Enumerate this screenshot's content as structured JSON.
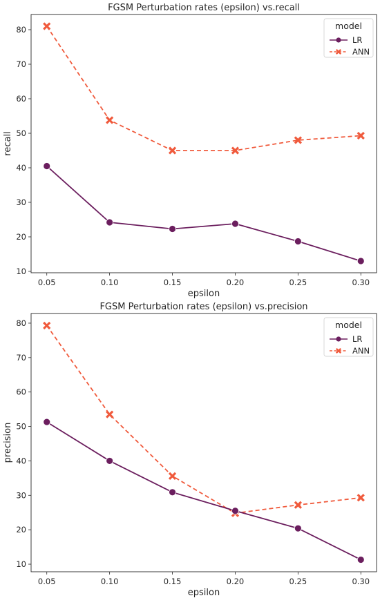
{
  "chart_data": [
    {
      "type": "line",
      "title": "FGSM Perturbation rates (epsilon) vs.recall",
      "xlabel": "epsilon",
      "ylabel": "recall",
      "x": [
        0.05,
        0.1,
        0.15,
        0.2,
        0.25,
        0.3
      ],
      "x_ticks": [
        "0.05",
        "0.10",
        "0.15",
        "0.20",
        "0.25",
        "0.30"
      ],
      "y_ticks": [
        10,
        20,
        30,
        40,
        50,
        60,
        70,
        80
      ],
      "xlim": [
        0.0375,
        0.3125
      ],
      "ylim": [
        9.6,
        84.4
      ],
      "grid": false,
      "legend": {
        "title": "model",
        "placement": "upper right"
      },
      "series": [
        {
          "name": "LR",
          "color": "#6b1e5e",
          "style": "solid",
          "marker": "circle",
          "values": [
            40.5,
            24.2,
            22.3,
            23.8,
            18.7,
            13.0
          ]
        },
        {
          "name": "ANN",
          "color": "#f05a3c",
          "style": "dashed",
          "marker": "x",
          "values": [
            81.0,
            53.8,
            45.0,
            45.0,
            48.0,
            49.3
          ]
        }
      ]
    },
    {
      "type": "line",
      "title": "FGSM Perturbation rates (epsilon) vs.precision",
      "xlabel": "epsilon",
      "ylabel": "precision",
      "x": [
        0.05,
        0.1,
        0.15,
        0.2,
        0.25,
        0.3
      ],
      "x_ticks": [
        "0.05",
        "0.10",
        "0.15",
        "0.20",
        "0.25",
        "0.30"
      ],
      "y_ticks": [
        10,
        20,
        30,
        40,
        50,
        60,
        70,
        80
      ],
      "xlim": [
        0.0375,
        0.3125
      ],
      "ylim": [
        7.8,
        82.8
      ],
      "grid": false,
      "legend": {
        "title": "model",
        "placement": "upper right"
      },
      "series": [
        {
          "name": "LR",
          "color": "#6b1e5e",
          "style": "solid",
          "marker": "circle",
          "values": [
            51.3,
            40.0,
            30.9,
            25.5,
            20.4,
            11.3
          ]
        },
        {
          "name": "ANN",
          "color": "#f05a3c",
          "style": "dashed",
          "marker": "x",
          "values": [
            79.3,
            53.5,
            35.6,
            24.8,
            27.2,
            29.3
          ]
        }
      ]
    }
  ]
}
